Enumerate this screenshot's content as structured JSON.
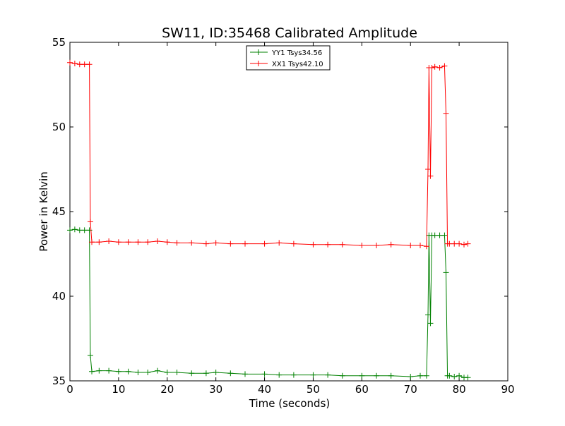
{
  "chart_data": {
    "type": "line",
    "title": "SW11, ID:35468 Calibrated Amplitude",
    "xlabel": "Time (seconds)",
    "ylabel": "Power in Kelvin",
    "xlim": [
      0,
      90
    ],
    "ylim": [
      35,
      55
    ],
    "x_ticks": [
      0,
      10,
      20,
      30,
      40,
      50,
      60,
      70,
      80,
      90
    ],
    "y_ticks": [
      35,
      40,
      45,
      50,
      55
    ],
    "grid": false,
    "legend_position": "top-center",
    "marker": "plus",
    "series": [
      {
        "name": "YY1 Tsys34.56",
        "color": "#008000",
        "x": [
          0,
          1,
          2,
          3,
          4,
          4.2,
          4.5,
          6,
          8,
          10,
          12,
          14,
          16,
          18,
          20,
          22,
          25,
          28,
          30,
          33,
          36,
          40,
          43,
          46,
          50,
          53,
          56,
          60,
          63,
          66,
          70,
          72,
          73.3,
          73.6,
          73.8,
          74.1,
          74.4,
          75,
          76,
          77,
          77.3,
          77.6,
          78,
          79,
          80,
          81,
          81.8
        ],
        "values": [
          43.9,
          43.95,
          43.9,
          43.9,
          43.9,
          36.5,
          35.55,
          35.6,
          35.6,
          35.55,
          35.55,
          35.5,
          35.5,
          35.6,
          35.5,
          35.5,
          35.45,
          35.45,
          35.5,
          35.45,
          35.4,
          35.4,
          35.35,
          35.35,
          35.35,
          35.35,
          35.3,
          35.3,
          35.3,
          35.3,
          35.25,
          35.3,
          35.3,
          38.9,
          43.6,
          38.4,
          43.6,
          43.6,
          43.6,
          43.6,
          41.4,
          35.3,
          35.3,
          35.25,
          35.3,
          35.2,
          35.2
        ]
      },
      {
        "name": "XX1 Tsys42.10",
        "color": "#ff0000",
        "x": [
          0,
          1,
          2,
          3,
          4,
          4.2,
          4.5,
          6,
          8,
          10,
          12,
          14,
          16,
          18,
          20,
          22,
          25,
          28,
          30,
          33,
          36,
          40,
          43,
          46,
          50,
          53,
          56,
          60,
          63,
          66,
          70,
          72,
          73.3,
          73.6,
          73.8,
          74.1,
          74.4,
          75,
          76,
          77,
          77.3,
          77.6,
          78,
          79,
          80,
          81,
          81.8
        ],
        "values": [
          53.8,
          53.75,
          53.7,
          53.7,
          53.7,
          44.4,
          43.2,
          43.2,
          43.25,
          43.2,
          43.2,
          43.2,
          43.2,
          43.25,
          43.2,
          43.15,
          43.15,
          43.1,
          43.15,
          43.1,
          43.1,
          43.1,
          43.15,
          43.1,
          43.05,
          43.05,
          43.05,
          43.0,
          43.0,
          43.05,
          43.0,
          43.0,
          42.95,
          47.5,
          53.5,
          47.1,
          53.5,
          53.55,
          53.5,
          53.6,
          50.8,
          43.1,
          43.1,
          43.1,
          43.1,
          43.05,
          43.1
        ]
      }
    ]
  }
}
